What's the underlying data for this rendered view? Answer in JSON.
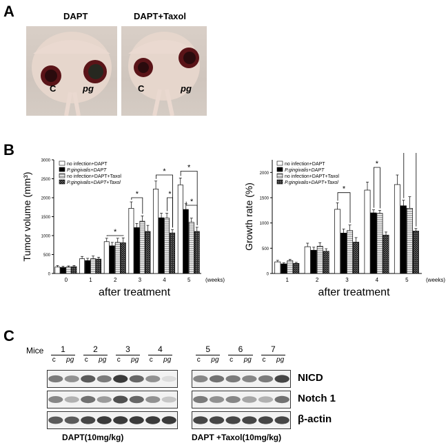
{
  "panels": {
    "a": "A",
    "b": "B",
    "c": "C"
  },
  "panelA": {
    "left_title": "DAPT",
    "right_title": "DAPT+Taxol",
    "tumor_labels": {
      "control": "C",
      "infected": "pg"
    }
  },
  "chart_data": [
    {
      "type": "bar",
      "title": "",
      "ylabel": "Tumor volume (mm³)",
      "xlabel": "after treatment",
      "x_unit": "(weeks)",
      "categories": [
        "0",
        "1",
        "2",
        "3",
        "4",
        "5"
      ],
      "ylim": [
        0,
        3000
      ],
      "yticks": [
        0,
        500,
        1000,
        1500,
        2000,
        2500,
        3000
      ],
      "legend_position": "top-left",
      "series": [
        {
          "name": "no infection+DAPT",
          "values": [
            170,
            390,
            840,
            1720,
            2230,
            2340
          ],
          "errors": [
            40,
            60,
            90,
            170,
            210,
            180
          ]
        },
        {
          "name": "P.gingivalis+DAPT",
          "values": [
            160,
            340,
            730,
            1210,
            1470,
            1690
          ],
          "errors": [
            30,
            60,
            90,
            110,
            120,
            150
          ]
        },
        {
          "name": "no infection+DAPT+Taxol",
          "values": [
            170,
            390,
            820,
            1380,
            1460,
            1350
          ],
          "errors": [
            30,
            70,
            110,
            140,
            130,
            110
          ]
        },
        {
          "name": "P.gingivalis+DAPT+Taxol",
          "values": [
            180,
            380,
            810,
            1110,
            1070,
            1110
          ],
          "errors": [
            30,
            50,
            130,
            160,
            90,
            110
          ]
        }
      ],
      "annotations": [
        "*",
        "*",
        "*",
        "*",
        "*",
        "*",
        "*"
      ]
    },
    {
      "type": "bar",
      "title": "",
      "ylabel": "Growth rate (%)",
      "xlabel": "after treatment",
      "x_unit": "(weeks)",
      "categories": [
        "1",
        "2",
        "3",
        "4",
        "5"
      ],
      "ylim": [
        0,
        2250
      ],
      "yticks": [
        0,
        500,
        1000,
        1500,
        2000
      ],
      "legend_position": "top-left",
      "series": [
        {
          "name": "no infection+DAPT",
          "values": [
            230,
            530,
            1270,
            1650,
            1760
          ],
          "errors": [
            30,
            70,
            130,
            160,
            190
          ]
        },
        {
          "name": "P.gingivalis+DAPT",
          "values": [
            190,
            460,
            800,
            1200,
            1340
          ],
          "errors": [
            20,
            60,
            80,
            60,
            110
          ]
        },
        {
          "name": "no infection+DAPT+Taxol",
          "values": [
            250,
            540,
            850,
            1190,
            1290
          ],
          "errors": [
            30,
            70,
            110,
            60,
            230
          ]
        },
        {
          "name": "P.gingivalis+DAPT+Taxol",
          "values": [
            200,
            440,
            620,
            760,
            840
          ],
          "errors": [
            20,
            50,
            90,
            60,
            50
          ]
        }
      ],
      "annotations": [
        "*",
        "*",
        "*"
      ]
    }
  ],
  "panelC": {
    "mice_label": "Mice",
    "left_mice": [
      "1",
      "2",
      "3",
      "4"
    ],
    "right_mice": [
      "5",
      "6",
      "7"
    ],
    "lane_c": "c",
    "lane_pg": "pg",
    "blots": [
      "NICD",
      "Notch 1",
      "β-actin"
    ],
    "left_dose": "DAPT(10mg/kg)",
    "right_dose": "DAPT +Taxol(10mg/kg)",
    "band_intensity": {
      "NICD_left": [
        0.55,
        0.45,
        0.7,
        0.55,
        0.85,
        0.65,
        0.45,
        0.1
      ],
      "NICD_right": [
        0.5,
        0.6,
        0.55,
        0.5,
        0.55,
        0.8
      ],
      "Notch1_left": [
        0.5,
        0.3,
        0.6,
        0.4,
        0.75,
        0.65,
        0.45,
        0.2
      ],
      "Notch1_right": [
        0.55,
        0.45,
        0.5,
        0.35,
        0.3,
        0.6
      ],
      "actin_left": [
        0.7,
        0.7,
        0.8,
        0.85,
        0.85,
        0.85,
        0.85,
        0.85
      ],
      "actin_right": [
        0.8,
        0.8,
        0.8,
        0.8,
        0.8,
        0.8
      ]
    },
    "colors": {
      "band": "#1a1a1a",
      "frame": "#333333"
    }
  }
}
